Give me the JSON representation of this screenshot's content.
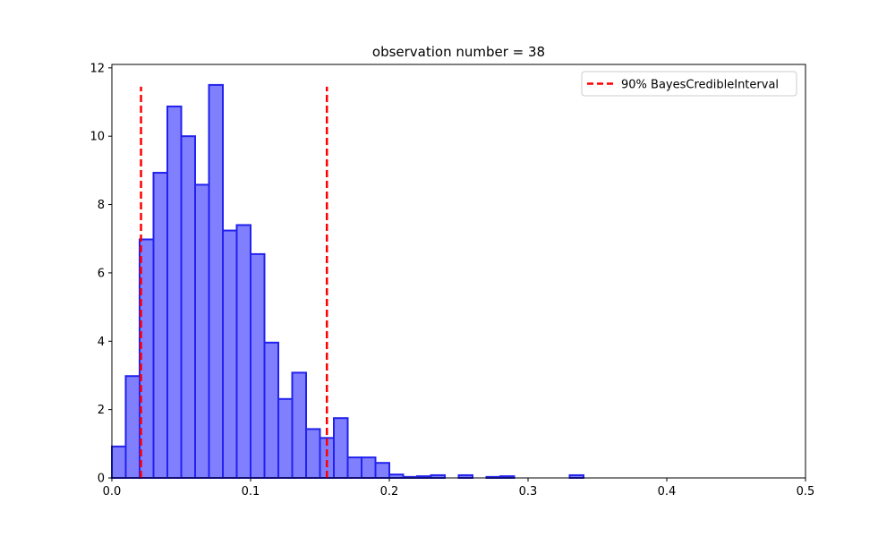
{
  "chart_data": {
    "type": "bar",
    "title": "observation number = 38",
    "xlabel": "",
    "ylabel": "",
    "xlim": [
      0.0,
      0.5
    ],
    "ylim": [
      0,
      12.1
    ],
    "xticks": [
      0.0,
      0.1,
      0.2,
      0.3,
      0.4,
      0.5
    ],
    "xtick_labels": [
      "0.0",
      "0.1",
      "0.2",
      "0.3",
      "0.4",
      "0.5"
    ],
    "yticks": [
      0,
      2,
      4,
      6,
      8,
      10,
      12
    ],
    "ytick_labels": [
      "0",
      "2",
      "4",
      "6",
      "8",
      "10",
      "12"
    ],
    "grid": false,
    "bin_width": 0.01,
    "bins": [
      {
        "x0": 0.0,
        "x1": 0.01,
        "value": 0.92
      },
      {
        "x0": 0.01,
        "x1": 0.02,
        "value": 2.98
      },
      {
        "x0": 0.02,
        "x1": 0.03,
        "value": 6.98
      },
      {
        "x0": 0.03,
        "x1": 0.04,
        "value": 8.93
      },
      {
        "x0": 0.04,
        "x1": 0.05,
        "value": 10.87
      },
      {
        "x0": 0.05,
        "x1": 0.06,
        "value": 10.0
      },
      {
        "x0": 0.06,
        "x1": 0.07,
        "value": 8.58
      },
      {
        "x0": 0.07,
        "x1": 0.08,
        "value": 11.5
      },
      {
        "x0": 0.08,
        "x1": 0.09,
        "value": 7.24
      },
      {
        "x0": 0.09,
        "x1": 0.1,
        "value": 7.4
      },
      {
        "x0": 0.1,
        "x1": 0.11,
        "value": 6.55
      },
      {
        "x0": 0.11,
        "x1": 0.12,
        "value": 3.96
      },
      {
        "x0": 0.12,
        "x1": 0.13,
        "value": 2.31
      },
      {
        "x0": 0.13,
        "x1": 0.14,
        "value": 3.08
      },
      {
        "x0": 0.14,
        "x1": 0.15,
        "value": 1.43
      },
      {
        "x0": 0.15,
        "x1": 0.16,
        "value": 1.17
      },
      {
        "x0": 0.16,
        "x1": 0.17,
        "value": 1.75
      },
      {
        "x0": 0.17,
        "x1": 0.18,
        "value": 0.6
      },
      {
        "x0": 0.18,
        "x1": 0.19,
        "value": 0.6
      },
      {
        "x0": 0.19,
        "x1": 0.2,
        "value": 0.44
      },
      {
        "x0": 0.2,
        "x1": 0.21,
        "value": 0.1
      },
      {
        "x0": 0.21,
        "x1": 0.22,
        "value": 0.03
      },
      {
        "x0": 0.22,
        "x1": 0.23,
        "value": 0.05
      },
      {
        "x0": 0.23,
        "x1": 0.24,
        "value": 0.08
      },
      {
        "x0": 0.25,
        "x1": 0.26,
        "value": 0.08
      },
      {
        "x0": 0.27,
        "x1": 0.28,
        "value": 0.03
      },
      {
        "x0": 0.28,
        "x1": 0.29,
        "value": 0.05
      },
      {
        "x0": 0.33,
        "x1": 0.34,
        "value": 0.08
      }
    ],
    "bar_fill": "#8080ff",
    "bar_edge": "#2222ee",
    "credible_interval": {
      "label": "90% BayesCredibleInterval",
      "lower": 0.021,
      "upper": 0.155,
      "height": 11.45,
      "color": "#ff0000",
      "style": "dashed"
    },
    "legend": {
      "placement": "top-right",
      "entries": [
        "90% BayesCredibleInterval"
      ]
    }
  }
}
